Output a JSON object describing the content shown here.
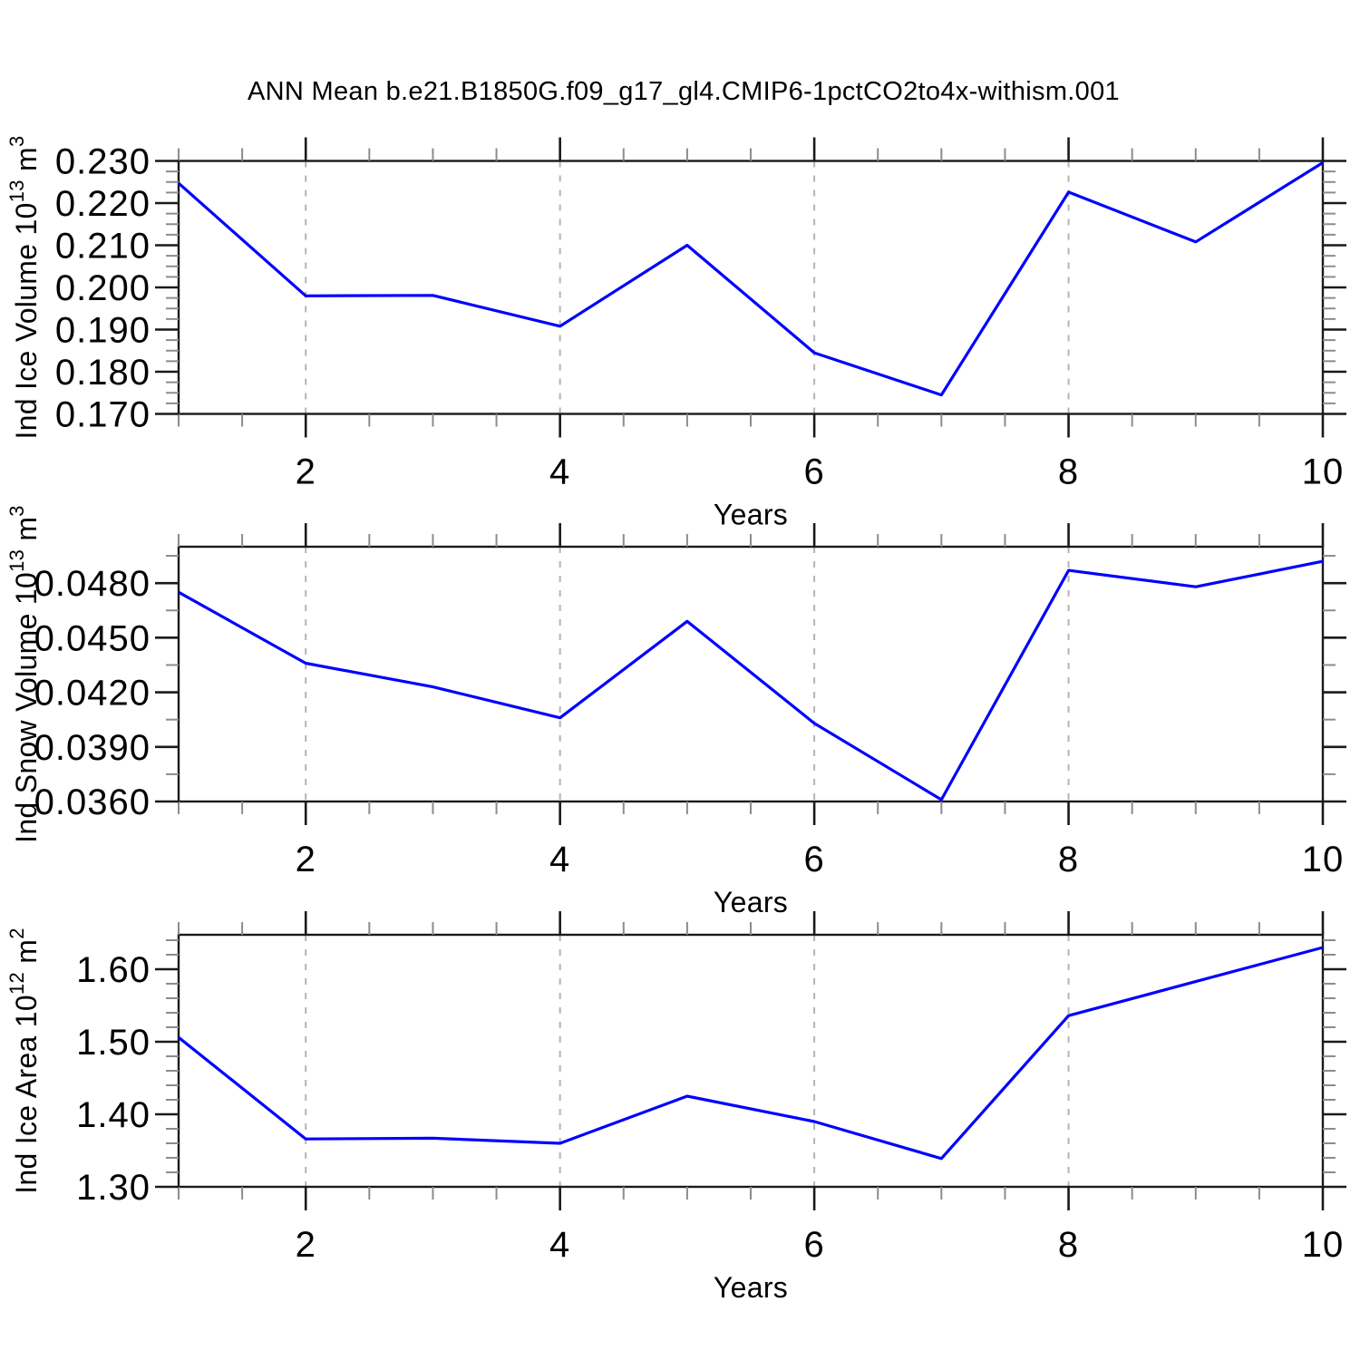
{
  "title": "ANN Mean b.e21.B1850G.f09_g17_gl4.CMIP6-1pctCO2to4x-withism.001",
  "line_color": "#0000ff",
  "grid_color": "#b4b4b4",
  "chart_data": [
    {
      "type": "line",
      "x": [
        1,
        2,
        3,
        4,
        5,
        6,
        7,
        8,
        9,
        10
      ],
      "values": [
        0.2247,
        0.198,
        0.1981,
        0.1908,
        0.21,
        0.1845,
        0.1745,
        0.2226,
        0.2108,
        0.2296
      ],
      "xlabel": "Years",
      "ylabel": "Ind Ice Volume 10^13 m^3",
      "ylabel_parts": [
        {
          "t": "Ind Ice Volume 10"
        },
        {
          "t": "13",
          "sup": true
        },
        {
          "t": " m"
        },
        {
          "t": "3",
          "sup": true
        }
      ],
      "xlim": [
        1,
        10
      ],
      "ylim": [
        0.17,
        0.23
      ],
      "x_major": [
        2,
        4,
        6,
        8,
        10
      ],
      "x_major_labels": [
        "2",
        "4",
        "6",
        "8",
        "10"
      ],
      "x_minor_step": 0.5,
      "y_major": [
        {
          "v": 0.17,
          "label": "0.170"
        },
        {
          "v": 0.18,
          "label": "0.180"
        },
        {
          "v": 0.19,
          "label": "0.190"
        },
        {
          "v": 0.2,
          "label": "0.200"
        },
        {
          "v": 0.21,
          "label": "0.210"
        },
        {
          "v": 0.22,
          "label": "0.220"
        },
        {
          "v": 0.23,
          "label": "0.230"
        }
      ],
      "y_minor_step": 0.0025,
      "grid_x": [
        2,
        4,
        6,
        8
      ],
      "grid_on": true,
      "legend": "none",
      "line_color": "#0000ff"
    },
    {
      "type": "line",
      "x": [
        1,
        2,
        3,
        4,
        5,
        6,
        7,
        8,
        9,
        10
      ],
      "values": [
        0.0475,
        0.0436,
        0.0423,
        0.0406,
        0.0459,
        0.0403,
        0.0361,
        0.0487,
        0.0478,
        0.0492
      ],
      "xlabel": "Years",
      "ylabel": "Ind Snow Volume 10^13 m^3",
      "ylabel_parts": [
        {
          "t": "Ind Snow Volume 10"
        },
        {
          "t": "13",
          "sup": true
        },
        {
          "t": " m"
        },
        {
          "t": "3",
          "sup": true
        }
      ],
      "xlim": [
        1,
        10
      ],
      "ylim": [
        0.036,
        0.05
      ],
      "x_major": [
        2,
        4,
        6,
        8,
        10
      ],
      "x_major_labels": [
        "2",
        "4",
        "6",
        "8",
        "10"
      ],
      "x_minor_step": 0.5,
      "y_major": [
        {
          "v": 0.036,
          "label": "0.0360"
        },
        {
          "v": 0.039,
          "label": "0.0390"
        },
        {
          "v": 0.042,
          "label": "0.0420"
        },
        {
          "v": 0.045,
          "label": "0.0450"
        },
        {
          "v": 0.048,
          "label": "0.0480"
        }
      ],
      "y_minor_step": 0.0015,
      "grid_x": [
        2,
        4,
        6,
        8
      ],
      "grid_on": true,
      "legend": "none",
      "line_color": "#0000ff"
    },
    {
      "type": "line",
      "x": [
        1,
        2,
        3,
        4,
        5,
        6,
        7,
        8,
        9,
        10
      ],
      "values": [
        1.506,
        1.366,
        1.367,
        1.36,
        1.425,
        1.39,
        1.339,
        1.536,
        1.583,
        1.63
      ],
      "xlabel": "Years",
      "ylabel": "Ind Ice Area 10^12 m^2",
      "ylabel_parts": [
        {
          "t": "Ind Ice Area 10"
        },
        {
          "t": "12",
          "sup": true
        },
        {
          "t": " m"
        },
        {
          "t": "2",
          "sup": true
        }
      ],
      "xlim": [
        1,
        10
      ],
      "ylim": [
        1.3,
        1.6475
      ],
      "x_major": [
        2,
        4,
        6,
        8,
        10
      ],
      "x_major_labels": [
        "2",
        "4",
        "6",
        "8",
        "10"
      ],
      "x_minor_step": 0.5,
      "y_major": [
        {
          "v": 1.3,
          "label": "1.30"
        },
        {
          "v": 1.4,
          "label": "1.40"
        },
        {
          "v": 1.5,
          "label": "1.50"
        },
        {
          "v": 1.6,
          "label": "1.60"
        }
      ],
      "y_minor_step": 0.02,
      "grid_x": [
        2,
        4,
        6,
        8
      ],
      "grid_on": true,
      "legend": "none",
      "line_color": "#0000ff"
    }
  ]
}
